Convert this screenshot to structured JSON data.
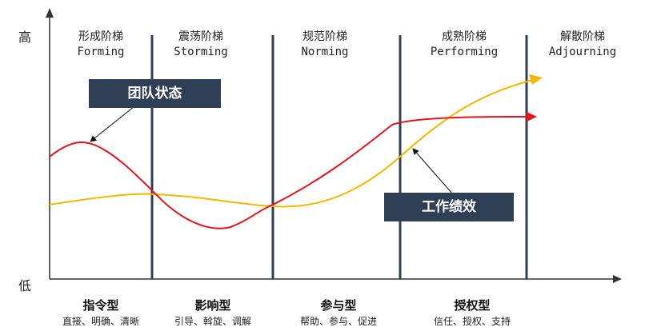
{
  "axis": {
    "high_label": "高",
    "low_label": "低"
  },
  "stages": [
    {
      "zh": "形成阶梯",
      "en": "Forming"
    },
    {
      "zh": "震荡阶梯",
      "en": "Storming"
    },
    {
      "zh": "规范阶梯",
      "en": "Norming"
    },
    {
      "zh": "成熟阶梯",
      "en": "Performing"
    },
    {
      "zh": "解散阶梯",
      "en": "Adjourning"
    }
  ],
  "callouts": {
    "team_state": "团队状态",
    "performance": "工作绩效"
  },
  "leadership_styles": [
    {
      "title": "指令型",
      "desc": "直接、明确、清晰"
    },
    {
      "title": "影响型",
      "desc": "引导、斡旋、调解"
    },
    {
      "title": "参与型",
      "desc": "帮助、参与、促进"
    },
    {
      "title": "授权型",
      "desc": "信任、授权、支持"
    }
  ],
  "colors": {
    "team_state_curve": "#e8141c",
    "performance_curve": "#f5b800",
    "divider": "#2f3f55",
    "callout_box": "#2f3f55"
  }
}
